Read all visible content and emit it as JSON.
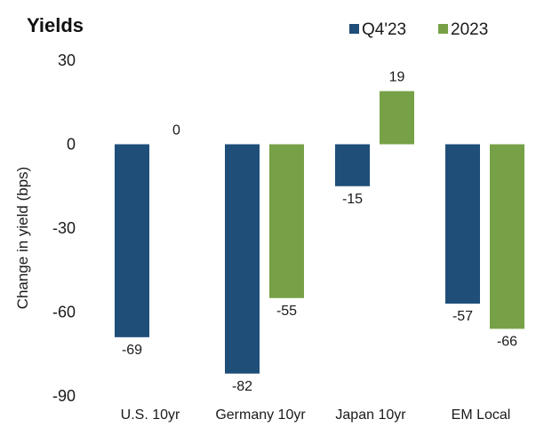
{
  "chart_data": {
    "type": "bar",
    "title": "Yields",
    "xlabel": "",
    "ylabel": "Change in yield (bps)",
    "ylim": [
      -90,
      30
    ],
    "yticks": [
      30,
      0,
      -30,
      -60,
      -90
    ],
    "categories": [
      "U.S. 10yr",
      "Germany 10yr",
      "Japan 10yr",
      "EM Local"
    ],
    "series": [
      {
        "name": "Q4'23",
        "color": "#1f4e79",
        "values": [
          -69,
          -82,
          -15,
          -57
        ]
      },
      {
        "name": "2023",
        "color": "#77a147",
        "values": [
          0,
          -55,
          19,
          -66
        ]
      }
    ],
    "data_labels": [
      [
        "-69",
        "-82",
        "-15",
        "-57"
      ],
      [
        "0",
        "-55",
        "19",
        "-66"
      ]
    ],
    "grid": false,
    "legend_position": "top-right"
  }
}
